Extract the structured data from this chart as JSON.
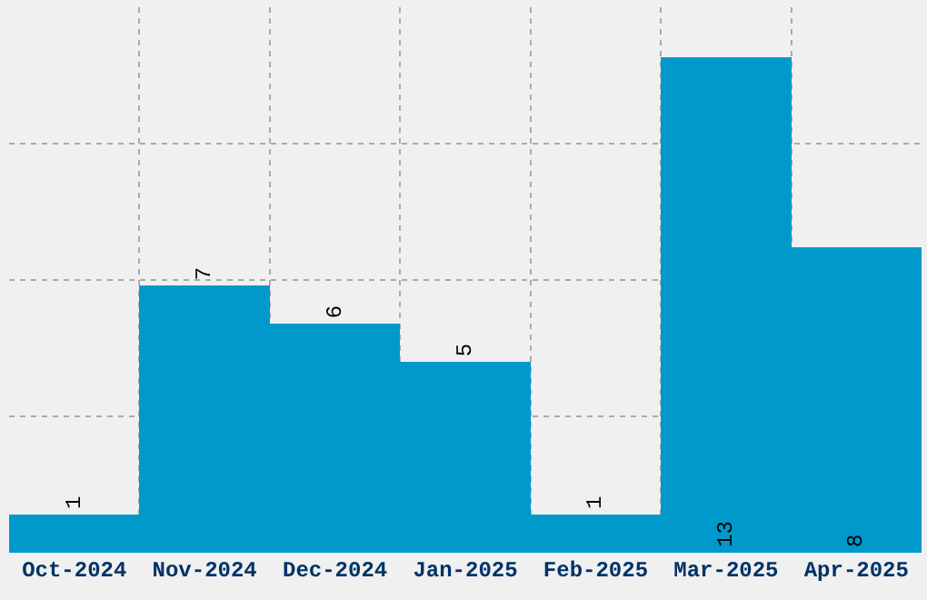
{
  "chart_data": {
    "type": "bar",
    "categories": [
      "Oct-2024",
      "Nov-2024",
      "Dec-2024",
      "Jan-2025",
      "Feb-2025",
      "Mar-2025",
      "Apr-2025"
    ],
    "values": [
      1,
      7,
      6,
      5,
      1,
      13,
      8
    ],
    "color": "#0099cc",
    "data_labels": true,
    "ylim": [
      0,
      14.3
    ],
    "yticks": [
      {
        "value": 3.575,
        "label": null
      },
      {
        "value": 7.15,
        "label": null
      },
      {
        "value": 10.725,
        "label": null
      }
    ],
    "grid": true,
    "tick_labels": "x"
  }
}
